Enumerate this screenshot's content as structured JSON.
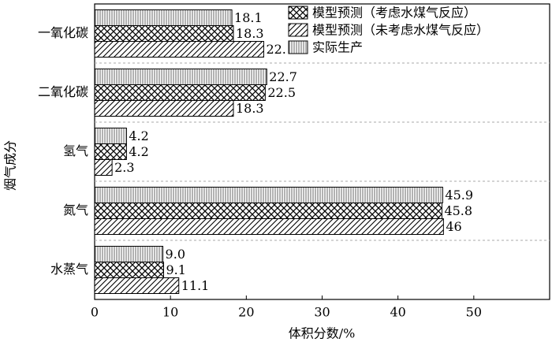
{
  "chart_data": {
    "type": "hbar",
    "xlabel": "体积分数/%",
    "ylabel": "烟气成分",
    "categories": [
      "一氧化碳",
      "二氧化碳",
      "氢气",
      "氮气",
      "水蒸气"
    ],
    "series": [
      {
        "name": "实际生产",
        "pattern": "vertical",
        "color": "#000000",
        "values": [
          18.1,
          22.7,
          4.2,
          45.9,
          9.0
        ],
        "value_labels": [
          "18.1",
          "22.7",
          "4.2",
          "45.9",
          "9.0"
        ]
      },
      {
        "name": "模型预测（考虑水煤气反应）",
        "pattern": "cross",
        "color": "#000000",
        "values": [
          18.3,
          22.5,
          4.2,
          45.8,
          9.1
        ]
      },
      {
        "name": "模型预测（未考虑水煤气反应）",
        "pattern": "diagonal",
        "color": "#000000",
        "values": [
          22.3,
          18.3,
          2.3,
          46,
          11.1
        ]
      }
    ],
    "legend_order": [
      1,
      2,
      0
    ],
    "xlim": [
      0,
      60
    ],
    "xticks": [
      0,
      10,
      20,
      30,
      40,
      50
    ]
  }
}
